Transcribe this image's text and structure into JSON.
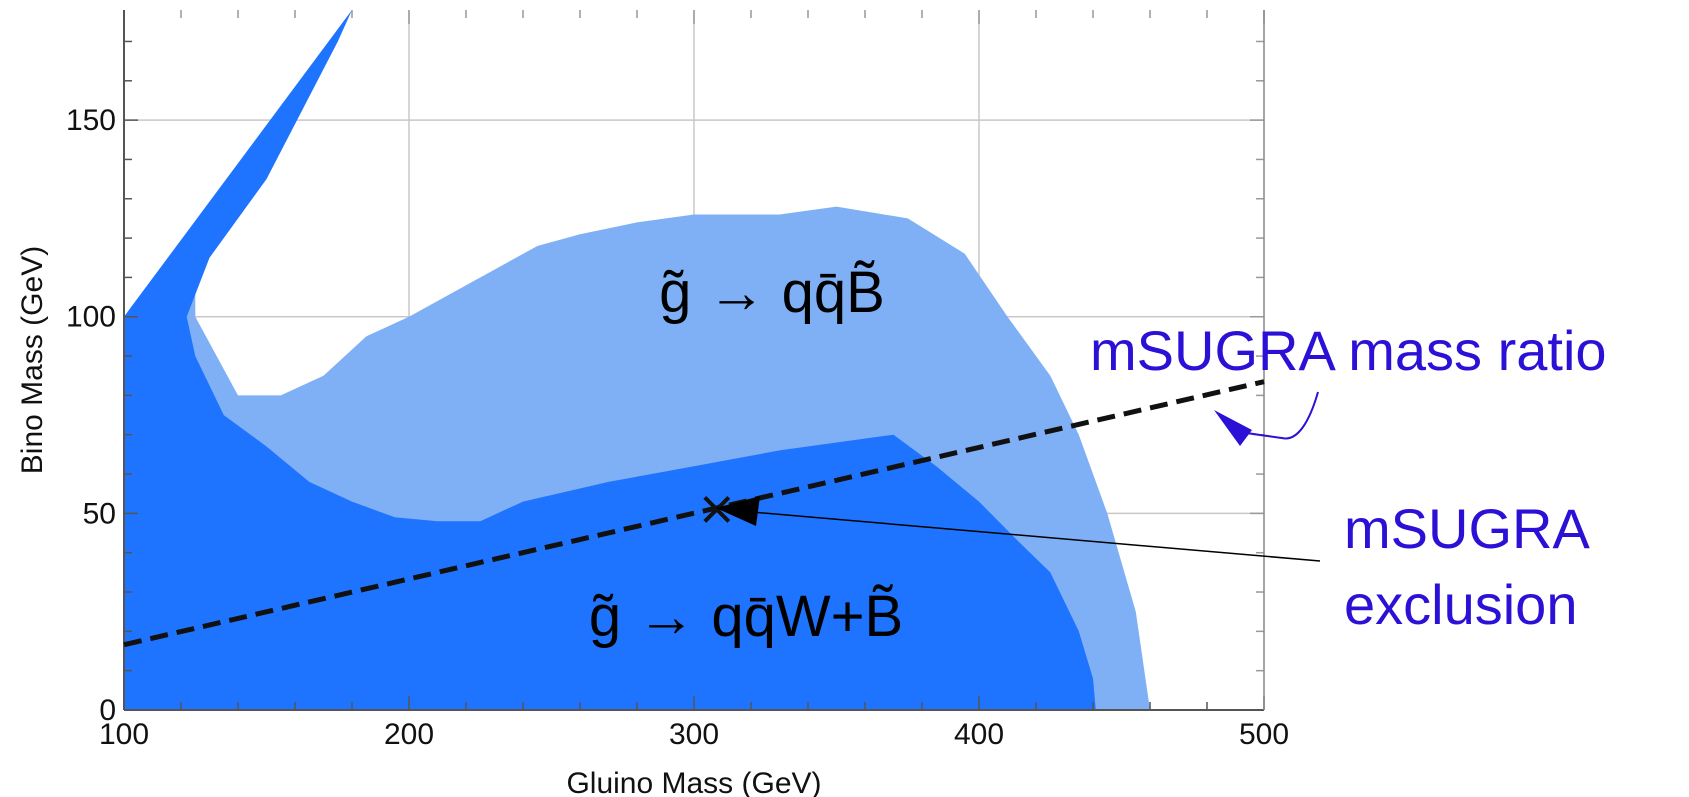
{
  "chart_data": {
    "type": "area",
    "xlabel": "Gluino Mass (GeV)",
    "ylabel": "Bino Mass (GeV)",
    "xlim": [
      100,
      500
    ],
    "ylim": [
      0,
      178
    ],
    "x_ticks": [
      100,
      200,
      300,
      400,
      500
    ],
    "y_ticks": [
      0,
      50,
      100,
      150
    ],
    "grid": true,
    "colors": {
      "light_region": "#7fb0f5",
      "dark_region": "#1e74ff",
      "annotation": "#2b11d6",
      "line": "#111111"
    },
    "regions": [
      {
        "label": "g̃ → qq̄B̃",
        "color": "light",
        "points": [
          [
            100,
            100
          ],
          [
            180,
            178
          ],
          [
            130,
            115
          ],
          [
            125,
            110
          ],
          [
            125,
            100
          ],
          [
            140,
            80
          ],
          [
            155,
            80
          ],
          [
            170,
            85
          ],
          [
            185,
            95
          ],
          [
            200,
            100
          ],
          [
            215,
            106
          ],
          [
            230,
            112
          ],
          [
            245,
            118
          ],
          [
            260,
            121
          ],
          [
            280,
            124
          ],
          [
            300,
            126
          ],
          [
            330,
            126
          ],
          [
            350,
            128
          ],
          [
            375,
            125
          ],
          [
            395,
            116
          ],
          [
            410,
            100
          ],
          [
            425,
            85
          ],
          [
            435,
            70
          ],
          [
            445,
            50
          ],
          [
            455,
            25
          ],
          [
            460,
            0
          ],
          [
            100,
            0
          ]
        ]
      },
      {
        "label": "g̃ → qq̄W+B̃",
        "color": "dark",
        "points": [
          [
            100,
            100
          ],
          [
            180,
            178
          ],
          [
            175,
            170
          ],
          [
            150,
            135
          ],
          [
            130,
            115
          ],
          [
            122,
            100
          ],
          [
            125,
            90
          ],
          [
            135,
            75
          ],
          [
            150,
            67
          ],
          [
            165,
            58
          ],
          [
            180,
            53
          ],
          [
            195,
            49
          ],
          [
            210,
            48
          ],
          [
            225,
            48
          ],
          [
            240,
            53
          ],
          [
            270,
            58
          ],
          [
            300,
            62
          ],
          [
            330,
            66
          ],
          [
            370,
            70
          ],
          [
            385,
            62
          ],
          [
            400,
            53
          ],
          [
            415,
            42
          ],
          [
            425,
            35
          ],
          [
            435,
            20
          ],
          [
            440,
            8
          ],
          [
            441,
            0
          ],
          [
            100,
            0
          ]
        ]
      }
    ],
    "lines": [
      {
        "label": "mSUGRA mass ratio",
        "style": "dashed",
        "x": [
          100,
          500
        ],
        "y": [
          16.6,
          83.5
        ]
      }
    ],
    "markers": [
      {
        "label": "mSUGRA exclusion",
        "x": 308,
        "y": 51
      }
    ],
    "annotations": [
      {
        "text": "mSUGRA mass ratio"
      },
      {
        "text_lines": [
          "mSUGRA",
          "exclusion"
        ]
      }
    ]
  }
}
